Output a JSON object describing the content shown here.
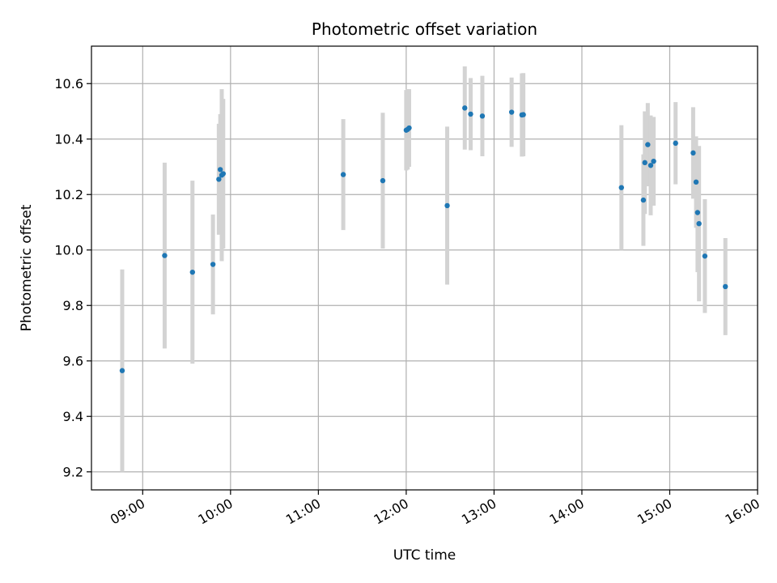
{
  "chart_data": {
    "type": "scatter",
    "title": "Photometric offset variation",
    "xlabel": "UTC time",
    "ylabel": "Photometric offset",
    "xlim": [
      "08:25",
      "16:00"
    ],
    "ylim": [
      9.135,
      10.735
    ],
    "grid": true,
    "x_ticks": [
      "09:00",
      "10:00",
      "11:00",
      "12:00",
      "13:00",
      "14:00",
      "15:00",
      "16:00"
    ],
    "y_ticks": [
      "9.2",
      "9.4",
      "9.6",
      "9.8",
      "10.0",
      "10.2",
      "10.4",
      "10.6"
    ],
    "colors": {
      "point": "#1f77b4",
      "errorbar": "#d3d3d3",
      "grid": "#b0b0b0"
    },
    "points": [
      {
        "time": "08:46",
        "y": 9.565,
        "err": 0.365
      },
      {
        "time": "09:15",
        "y": 9.98,
        "err": 0.335
      },
      {
        "time": "09:34",
        "y": 9.92,
        "err": 0.33
      },
      {
        "time": "09:48",
        "y": 9.948,
        "err": 0.18
      },
      {
        "time": "09:52",
        "y": 10.255,
        "err": 0.2
      },
      {
        "time": "09:53",
        "y": 10.29,
        "err": 0.2
      },
      {
        "time": "09:54",
        "y": 10.27,
        "err": 0.31
      },
      {
        "time": "09:55",
        "y": 10.275,
        "err": 0.27
      },
      {
        "time": "11:17",
        "y": 10.272,
        "err": 0.2
      },
      {
        "time": "11:44",
        "y": 10.25,
        "err": 0.245
      },
      {
        "time": "12:00",
        "y": 10.432,
        "err": 0.145
      },
      {
        "time": "12:01",
        "y": 10.435,
        "err": 0.145
      },
      {
        "time": "12:02",
        "y": 10.44,
        "err": 0.14
      },
      {
        "time": "12:28",
        "y": 10.16,
        "err": 0.285
      },
      {
        "time": "12:40",
        "y": 10.512,
        "err": 0.15
      },
      {
        "time": "12:44",
        "y": 10.49,
        "err": 0.13
      },
      {
        "time": "12:52",
        "y": 10.483,
        "err": 0.145
      },
      {
        "time": "13:12",
        "y": 10.497,
        "err": 0.125
      },
      {
        "time": "13:19",
        "y": 10.487,
        "err": 0.15
      },
      {
        "time": "13:20",
        "y": 10.488,
        "err": 0.15
      },
      {
        "time": "14:27",
        "y": 10.225,
        "err": 0.225
      },
      {
        "time": "14:42",
        "y": 10.18,
        "err": 0.165
      },
      {
        "time": "14:43",
        "y": 10.315,
        "err": 0.185
      },
      {
        "time": "14:45",
        "y": 10.38,
        "err": 0.15
      },
      {
        "time": "14:47",
        "y": 10.305,
        "err": 0.18
      },
      {
        "time": "14:49",
        "y": 10.32,
        "err": 0.16
      },
      {
        "time": "15:04",
        "y": 10.385,
        "err": 0.148
      },
      {
        "time": "15:16",
        "y": 10.35,
        "err": 0.165
      },
      {
        "time": "15:18",
        "y": 10.245,
        "err": 0.165
      },
      {
        "time": "15:19",
        "y": 10.135,
        "err": 0.215
      },
      {
        "time": "15:20",
        "y": 10.095,
        "err": 0.28
      },
      {
        "time": "15:24",
        "y": 9.978,
        "err": 0.205
      },
      {
        "time": "15:38",
        "y": 9.868,
        "err": 0.175
      }
    ]
  }
}
